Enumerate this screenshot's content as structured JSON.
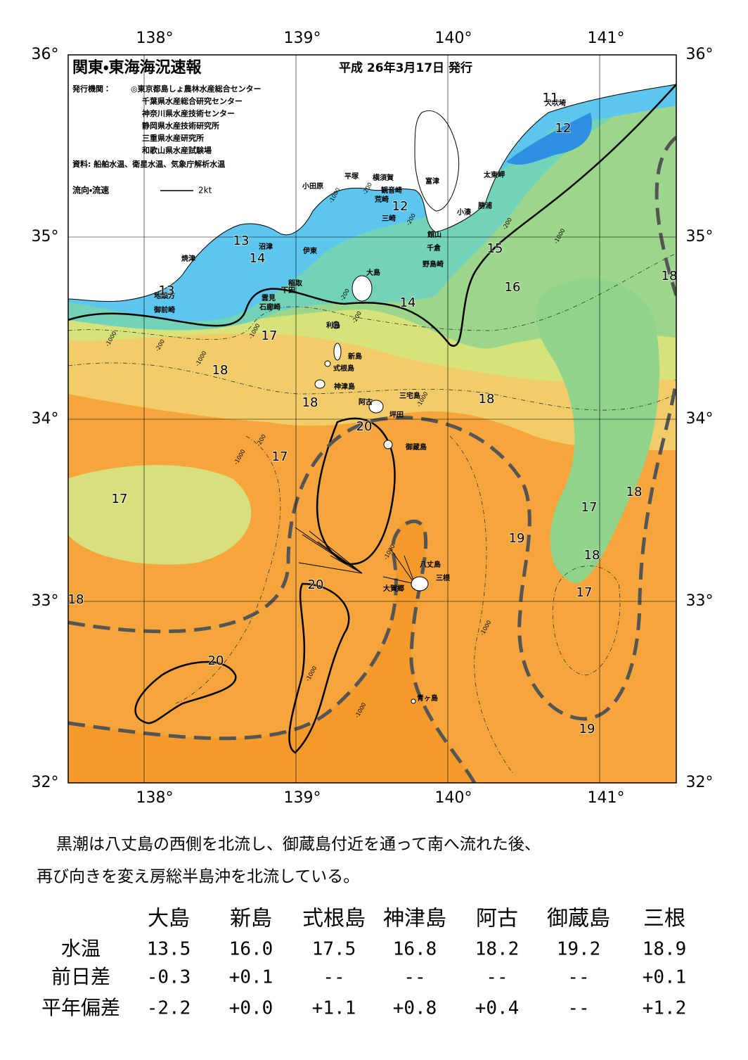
{
  "header": {
    "title": "関東・東海海況速報",
    "date": "平成 26年3月17日 発行",
    "issuer_label": "発行機関：",
    "issuers": [
      "◎東京都島しょ農林水産総合センター",
      "千葉県水産総合研究センター",
      "神奈川県水産技術センター",
      "静岡県水産技術研究所",
      "三重県水産研究所",
      "和歌山県水産試験場"
    ],
    "source": "資料: 船舶水温、衛星水温、気象庁解析水温",
    "flow_label": "流向・流速",
    "flow_scale": "2kt"
  },
  "map": {
    "lon_labels": [
      "138°",
      "139°",
      "140°",
      "141°"
    ],
    "lat_labels": [
      "36°",
      "35°",
      "34°",
      "33°",
      "32°"
    ],
    "places": [
      "小田原",
      "平塚",
      "横須賀",
      "観音崎",
      "荒崎",
      "三崎",
      "富津",
      "太東岬",
      "勝浦",
      "小湊",
      "館山",
      "千倉",
      "野島崎",
      "犬吠埼",
      "沼津",
      "焼津",
      "伊東",
      "稲取",
      "下田",
      "雲見",
      "石廊崎",
      "地頭方",
      "御前崎",
      "大島",
      "利島",
      "新島",
      "式根島",
      "神津島",
      "三宅島",
      "阿古",
      "坪田",
      "御蔵島",
      "八丈島",
      "三根",
      "大賀郷",
      "青ヶ島"
    ],
    "temperature_labels": [
      "11",
      "12",
      "12",
      "13",
      "14",
      "13",
      "15",
      "16",
      "14",
      "17",
      "18",
      "18",
      "18",
      "20",
      "17",
      "17",
      "18",
      "17",
      "19",
      "18",
      "17",
      "20",
      "18",
      "20",
      "19",
      "18"
    ],
    "depth_labels": [
      "-1000",
      "-200",
      "-200",
      "-200",
      "-1000",
      "-1000",
      "-200",
      "-1000",
      "-200",
      "-200",
      "-1000",
      "-200",
      "-1000",
      "-1000",
      "-1000",
      "-1000",
      "-1000",
      "-1000"
    ]
  },
  "description": [
    "黒潮は八丈島の西側を北流し、御蔵島付近を通って南へ流れた後、",
    "再び向きを変え房総半島沖を北流している。"
  ],
  "table": {
    "columns": [
      "大島",
      "新島",
      "式根島",
      "神津島",
      "阿古",
      "御蔵島",
      "三根"
    ],
    "rows": [
      {
        "label": "水温",
        "values": [
          "13.5",
          "16.0",
          "17.5",
          "16.8",
          "18.2",
          "19.2",
          "18.9"
        ]
      },
      {
        "label": "前日差",
        "values": [
          "-0.3",
          "+0.1",
          "--",
          "--",
          "--",
          "--",
          "+0.1"
        ]
      },
      {
        "label": "平年偏差",
        "values": [
          "-2.2",
          "+0.0",
          "+1.1",
          "+0.8",
          "+0.4",
          "--",
          "+1.2"
        ]
      }
    ]
  }
}
